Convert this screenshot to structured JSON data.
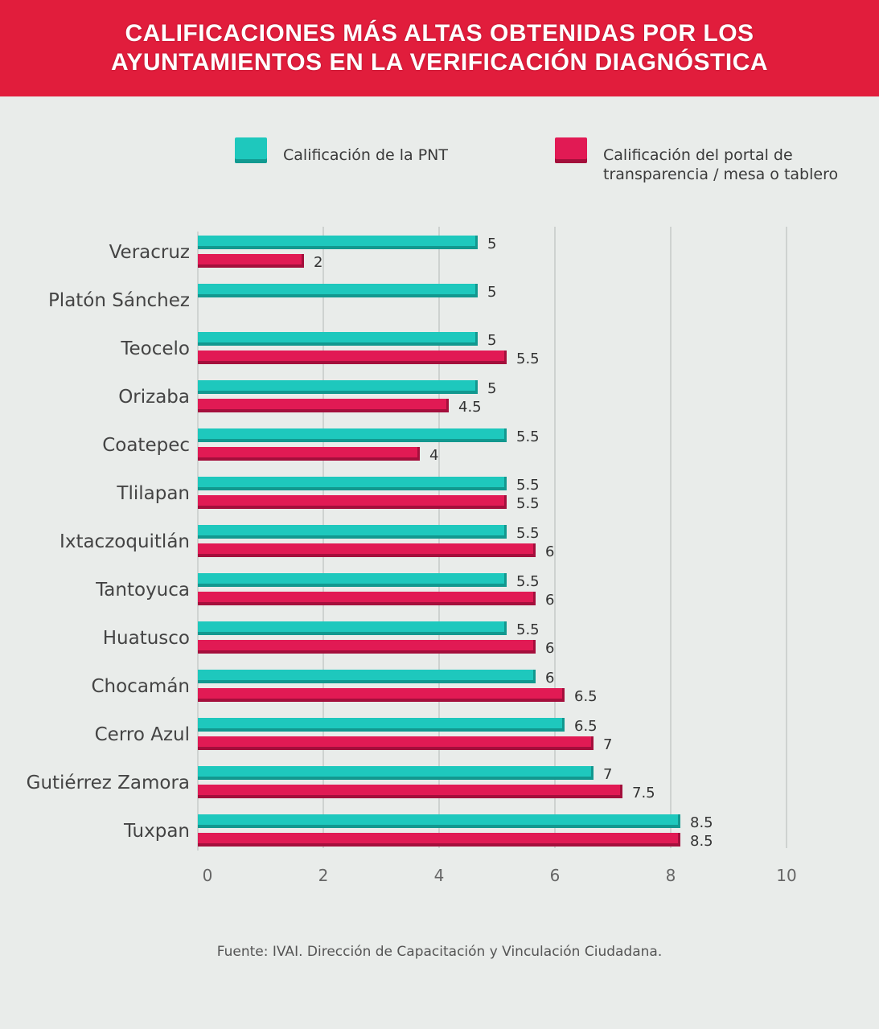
{
  "header": {
    "line1": "CALIFICACIONES MÁS ALTAS OBTENIDAS POR LOS",
    "line2": "AYUNTAMIENTOS EN LA VERIFICACIÓN DIAGNÓSTICA"
  },
  "legend": {
    "pnt_label": "Calificación de la PNT",
    "portal_label_line1": "Calificación del portal de",
    "portal_label_line2": "transparencia / mesa o tablero"
  },
  "colors": {
    "pnt": "#1ec8bd",
    "portal": "#e11a54",
    "header": "#e11d3c"
  },
  "chart_data": {
    "type": "bar",
    "orientation": "horizontal",
    "categories": [
      "Veracruz",
      "Platón Sánchez",
      "Teocelo",
      "Orizaba",
      "Coatepec",
      "Tlilapan",
      "Ixtaczoquitlán",
      "Tantoyuca",
      "Huatusco",
      "Chocamán",
      "Cerro Azul",
      "Gutiérrez Zamora",
      "Tuxpan"
    ],
    "series": [
      {
        "name": "Calificación de la PNT",
        "values": [
          5,
          5,
          5,
          5,
          5.5,
          5.5,
          5.5,
          5.5,
          5.5,
          6,
          6.5,
          7,
          8.5
        ]
      },
      {
        "name": "Calificación del portal de transparencia / mesa o tablero",
        "values": [
          2,
          null,
          5.5,
          4.5,
          4,
          5.5,
          6,
          6,
          6,
          6.5,
          7,
          7.5,
          8.5
        ]
      }
    ],
    "series_labels": [
      [
        "5",
        "5",
        "5",
        "5",
        "5.5",
        "5.5",
        "5.5",
        "5.5",
        "5.5",
        "6",
        "6.5",
        "7",
        "8.5"
      ],
      [
        "2",
        "",
        "5.5",
        "4.5",
        "4",
        "5.5",
        "6",
        "6",
        "6",
        "6.5",
        "7",
        "7.5",
        "8.5"
      ]
    ],
    "xticks": [
      "0",
      "2",
      "4",
      "6",
      "8",
      "10"
    ],
    "xlim": [
      0,
      10
    ],
    "grid": true
  },
  "source": "Fuente: IVAI. Dirección de Capacitación y Vinculación Ciudadana."
}
